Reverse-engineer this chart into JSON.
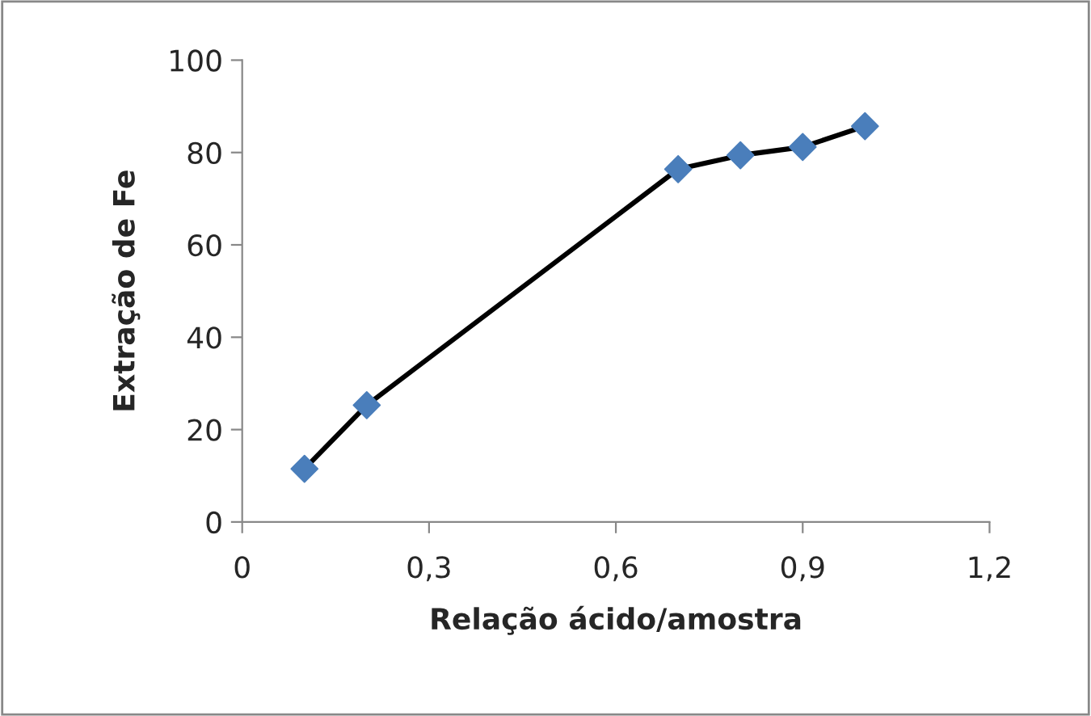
{
  "chart_data": {
    "type": "line",
    "xlabel": "Relação ácido/amostra",
    "ylabel": "Extração de Fe",
    "x": [
      0.1,
      0.2,
      0.7,
      0.8,
      0.9,
      1.0
    ],
    "series": [
      {
        "color": "#4a7ebb",
        "values": [
          11.5,
          25.3,
          76.4,
          79.4,
          81.2,
          85.7
        ]
      }
    ],
    "xlim": [
      0,
      1.2
    ],
    "xticks": [
      0,
      {
        "value": 0.3,
        "label": "0,3"
      },
      {
        "value": 0.6,
        "label": "0,6"
      },
      {
        "value": 0.9,
        "label": "0,9"
      },
      {
        "value": 1.2,
        "label": "1,2"
      }
    ],
    "ylim": [
      0,
      100
    ],
    "yticks": [
      0,
      20,
      40,
      60,
      80,
      100
    ],
    "marker": "diamond",
    "line_style": "solid",
    "grid": false,
    "legend": false
  }
}
